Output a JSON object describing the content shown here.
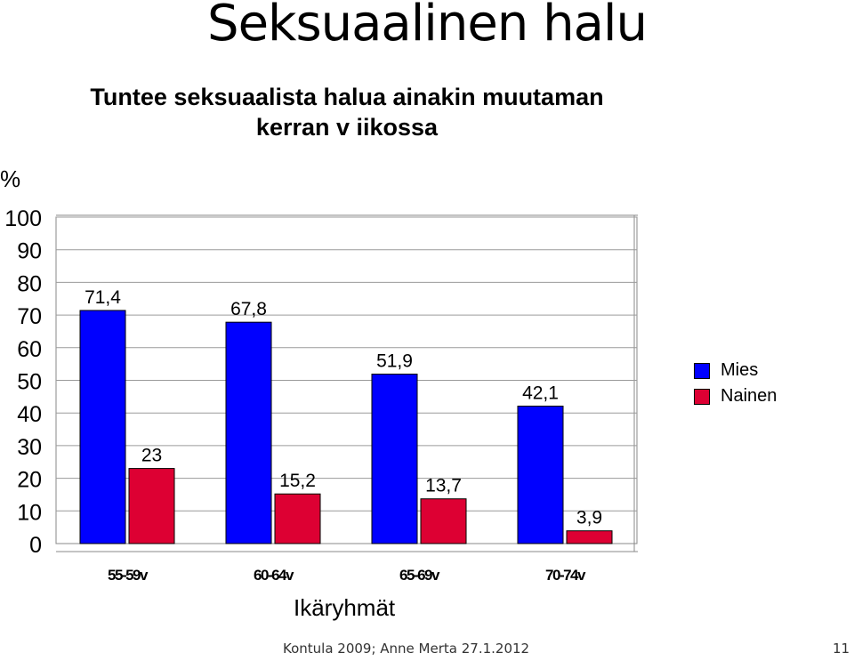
{
  "slide": {
    "title": "Seksuaalinen halu",
    "footer": "Kontula 2009; Anne Merta 27.1.2012",
    "page_number": "11"
  },
  "chart_data": {
    "type": "bar",
    "title_lines": [
      "Tuntee seksuaalista halua ainakin muutaman",
      "kerran v iikossa"
    ],
    "unit_label": "%",
    "xlabel": "Ikäryhmät",
    "categories": [
      "55-59v",
      "60-64v",
      "65-69v",
      "70-74v"
    ],
    "series": [
      {
        "name": "Mies",
        "color": "#0000ff",
        "values": [
          71.4,
          67.8,
          51.9,
          42.1
        ],
        "labels": [
          "71,4",
          "67,8",
          "51,9",
          "42,1"
        ]
      },
      {
        "name": "Nainen",
        "color": "#dd0033",
        "values": [
          23,
          15.2,
          13.7,
          3.9
        ],
        "labels": [
          "23",
          "15,2",
          "13,7",
          "3,9"
        ]
      }
    ],
    "ylim": [
      0,
      100
    ],
    "yticks": [
      0,
      10,
      20,
      30,
      40,
      50,
      60,
      70,
      80,
      90,
      100
    ],
    "grid": true,
    "legend_position": "right"
  }
}
